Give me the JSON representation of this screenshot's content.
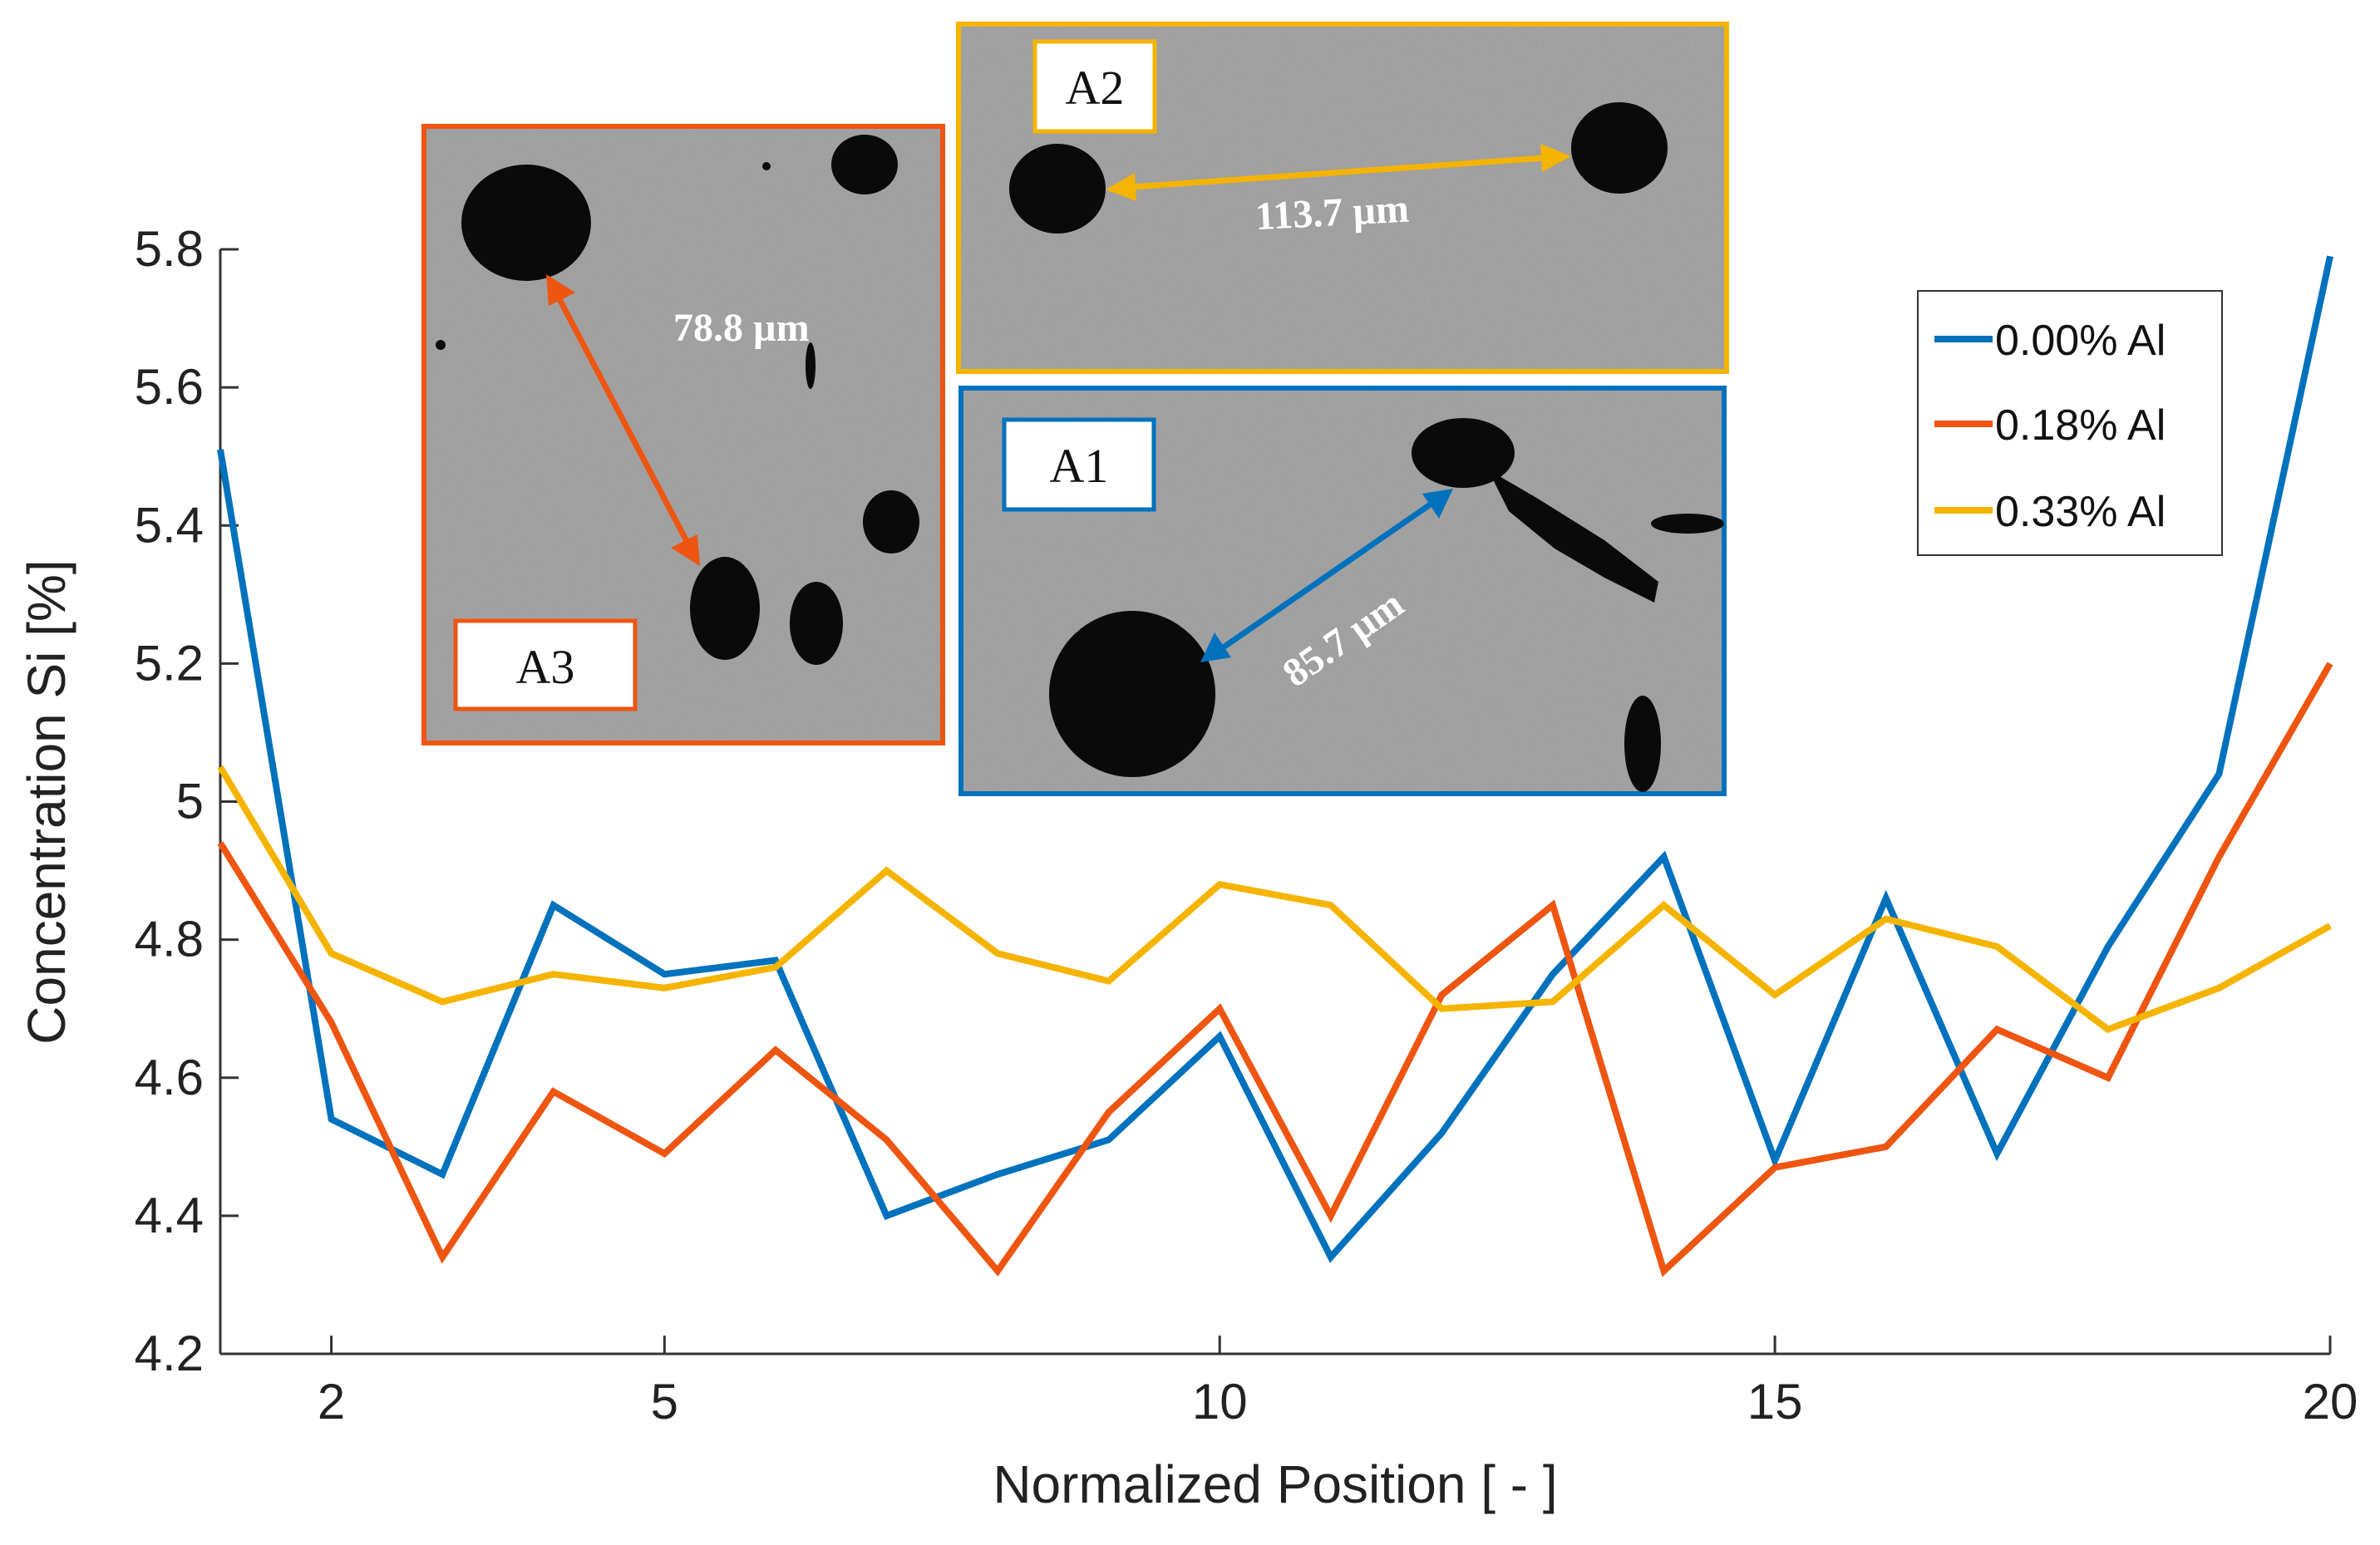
{
  "chart_data": {
    "type": "line",
    "title": "",
    "xlabel": "Normalized Position [ - ]",
    "ylabel": "Concentration Si [%]",
    "xlim": [
      1,
      20
    ],
    "ylim": [
      4.2,
      5.8
    ],
    "x_ticks": [
      2,
      5,
      10,
      15,
      20
    ],
    "y_ticks": [
      4.2,
      4.4,
      4.6,
      4.8,
      5.0,
      5.2,
      5.4,
      5.6,
      5.8
    ],
    "x_tick_labels": [
      "2",
      "5",
      "10",
      "15",
      "20"
    ],
    "y_tick_labels": [
      "4.2",
      "4.4",
      "4.6",
      "4.8",
      "5",
      "5.2",
      "5.4",
      "5.6",
      "5.8"
    ],
    "x": [
      1,
      2,
      3,
      4,
      5,
      6,
      7,
      8,
      9,
      10,
      11,
      12,
      13,
      14,
      15,
      16,
      17,
      18,
      19,
      20
    ],
    "legend_position": "top-right",
    "series": [
      {
        "name": "0.00% Al",
        "color": "#0072BD",
        "values": [
          5.51,
          4.54,
          4.46,
          4.85,
          4.75,
          4.77,
          4.4,
          4.46,
          4.51,
          4.66,
          4.34,
          4.52,
          4.75,
          4.92,
          4.48,
          4.86,
          4.49,
          4.79,
          5.04,
          5.79
        ]
      },
      {
        "name": "0.18% Al",
        "color": "#EE5511",
        "values": [
          4.94,
          4.68,
          4.34,
          4.58,
          4.49,
          4.64,
          4.51,
          4.32,
          4.55,
          4.7,
          4.4,
          4.72,
          4.85,
          4.32,
          4.47,
          4.5,
          4.67,
          4.6,
          4.92,
          5.2
        ]
      },
      {
        "name": "0.33% Al",
        "color": "#F5B400",
        "values": [
          5.05,
          4.78,
          4.71,
          4.75,
          4.73,
          4.76,
          4.9,
          4.78,
          4.74,
          4.88,
          4.85,
          4.7,
          4.71,
          4.85,
          4.72,
          4.83,
          4.79,
          4.67,
          4.73,
          4.82
        ]
      }
    ],
    "insets": [
      {
        "label": "A3",
        "distance": "78.8 µm",
        "border_color": "#EE5511"
      },
      {
        "label": "A2",
        "distance": "113.7 µm",
        "border_color": "#F5B400"
      },
      {
        "label": "A1",
        "distance": "85.7 µm",
        "border_color": "#0072BD"
      }
    ]
  }
}
